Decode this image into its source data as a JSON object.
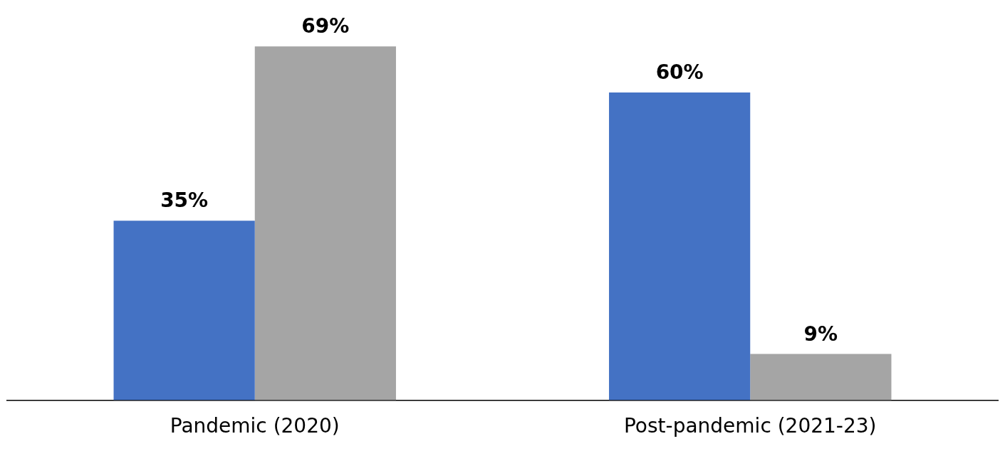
{
  "chart_data": {
    "type": "bar",
    "categories": [
      "Pandemic (2020)",
      "Post-pandemic (2021-23)"
    ],
    "series": [
      {
        "color": "#4472c4",
        "values": [
          35,
          60
        ],
        "value_labels": [
          "35%",
          "60%"
        ]
      },
      {
        "color": "#a5a5a5",
        "values": [
          69,
          9
        ],
        "value_labels": [
          "69%",
          "9%"
        ]
      }
    ],
    "grid": false,
    "legend": false
  }
}
